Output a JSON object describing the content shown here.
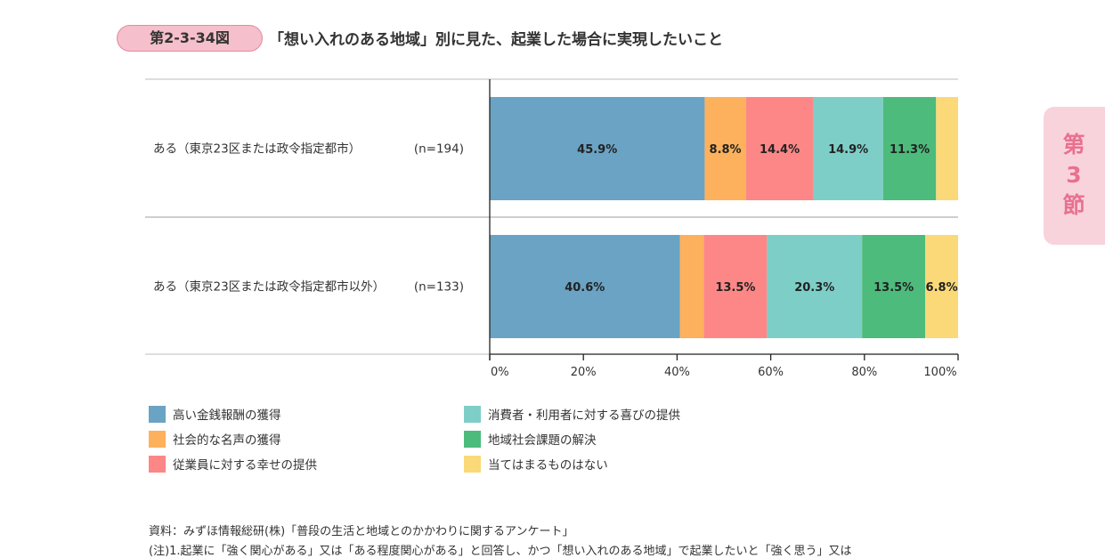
{
  "figure_label": "第2-3-34図",
  "figure_title": "「想い入れのある地域」別に見た、起業した場合に実現したいこと",
  "side_tab": "第\n3\n節",
  "chart_data": {
    "type": "bar",
    "orientation": "horizontal",
    "stacked": true,
    "categories": [
      {
        "label": "ある（東京23区または政令指定都市）",
        "n": "(n=194)"
      },
      {
        "label": "ある（東京23区または政令指定都市以外）",
        "n": "(n=133)"
      }
    ],
    "series": [
      {
        "name": "高い金銭報酬の獲得",
        "color": "#6aa3c4",
        "values": [
          45.9,
          40.6
        ],
        "labels": [
          "45.9%",
          "40.6%"
        ]
      },
      {
        "name": "社会的な名声の獲得",
        "color": "#fdb15c",
        "values": [
          8.8,
          5.1
        ],
        "labels": [
          "8.8%",
          ""
        ]
      },
      {
        "name": "従業員に対する幸せの提供",
        "color": "#fd8787",
        "values": [
          14.4,
          13.5
        ],
        "labels": [
          "14.4%",
          "13.5%"
        ]
      },
      {
        "name": "消費者・利用者に対する喜びの提供",
        "color": "#7ecec8",
        "values": [
          14.9,
          20.3
        ],
        "labels": [
          "14.9%",
          "20.3%"
        ]
      },
      {
        "name": "地域社会課題の解決",
        "color": "#4dbb7b",
        "values": [
          11.3,
          13.5
        ],
        "labels": [
          "11.3%",
          "13.5%"
        ]
      },
      {
        "name": "当てはまるものはない",
        "color": "#fbd978",
        "values": [
          4.6,
          6.8
        ],
        "labels": [
          "",
          "6.8%"
        ]
      }
    ],
    "x_ticks": [
      "0%",
      "20%",
      "40%",
      "60%",
      "80%",
      "100%"
    ],
    "xlim": [
      0,
      100
    ],
    "grid": false,
    "legend_position": "bottom"
  },
  "source": "資料：みずほ情報総研(株)「普段の生活と地域とのかかわりに関するアンケート」",
  "note": "(注)1.起業に「強く関心がある」又は「ある程度関心がある」と回答し、かつ「想い入れのある地域」で起業したいと「強く思う」又は"
}
